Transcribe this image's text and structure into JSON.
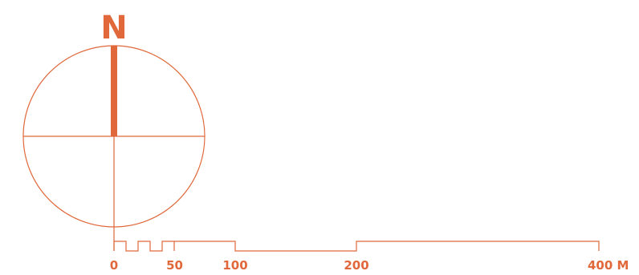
{
  "accent_color": "#e0683b",
  "north_arrow": {
    "label": "N",
    "icon": "north-arrow-icon"
  },
  "scale_bar": {
    "icon": "scale-bar-icon",
    "unit": "M",
    "ticks": [
      {
        "value": 0,
        "label": "0"
      },
      {
        "value": 50,
        "label": "50"
      },
      {
        "value": 100,
        "label": "100"
      },
      {
        "value": 200,
        "label": "200"
      },
      {
        "value": 400,
        "label": "400 M"
      }
    ]
  }
}
